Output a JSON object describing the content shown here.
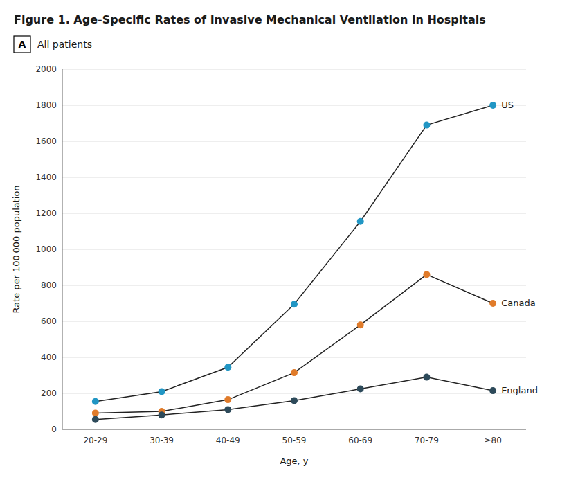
{
  "chart_data": {
    "type": "line",
    "title": "Figure 1. Age-Specific Rates of Invasive Mechanical Ventilation in Hospitals",
    "subtitle": "All patients",
    "annotations": [
      "A"
    ],
    "x_label": "Age, y",
    "y_label": "Rate per 100 000 population",
    "categories": [
      "20-29",
      "30-39",
      "40-49",
      "50-59",
      "60-69",
      "70-79",
      "≥80"
    ],
    "series": [
      {
        "name": "US",
        "color": "#2196C4",
        "values": [
          155,
          210,
          345,
          695,
          1155,
          1690,
          1800
        ]
      },
      {
        "name": "Canada",
        "color": "#E07B2A",
        "values": [
          90,
          100,
          165,
          315,
          580,
          860,
          700
        ]
      },
      {
        "name": "England",
        "color": "#2D4A5A",
        "values": [
          55,
          80,
          110,
          160,
          225,
          290,
          215
        ]
      }
    ],
    "ylim": [
      0,
      2000
    ],
    "yticks": [
      0,
      200,
      400,
      600,
      800,
      1000,
      1200,
      1400,
      1600,
      1800,
      2000
    ],
    "grid": true
  }
}
